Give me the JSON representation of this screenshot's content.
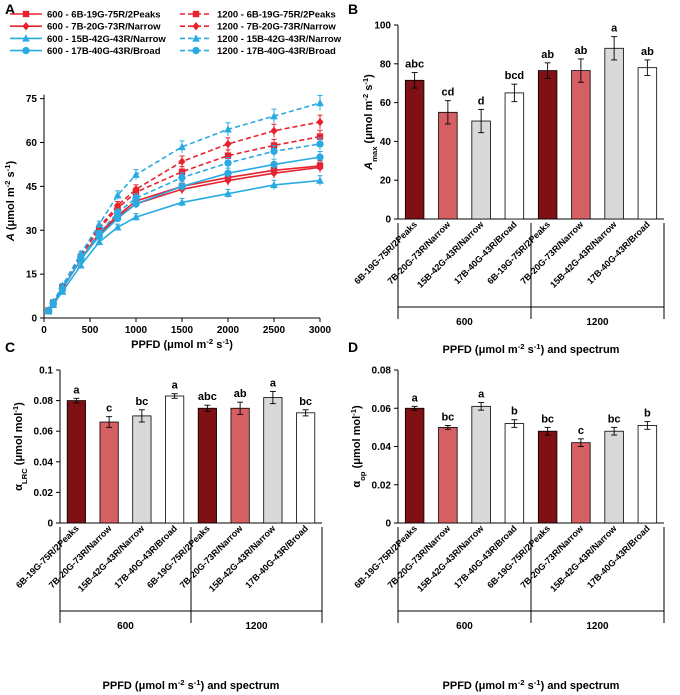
{
  "figure": {
    "panel_letters": [
      "A",
      "B",
      "C",
      "D"
    ],
    "colors": {
      "red": "#e8222e",
      "blue": "#29abe2",
      "dark_red": "#7f1014",
      "salmon": "#d65f63",
      "light_grey": "#d9d9d9",
      "white": "#ffffff",
      "axis": "#000000"
    }
  },
  "chart_data": [
    {
      "panel": "A",
      "type": "line",
      "title": "",
      "xlabel": "PPFD (μmol m⁻² s⁻¹)",
      "ylabel": "A (μmol m⁻² s⁻¹)",
      "xlim": [
        0,
        3000
      ],
      "ylim": [
        0,
        80
      ],
      "xticks": [
        0,
        500,
        1000,
        1500,
        2000,
        2500,
        3000
      ],
      "yticks": [
        0,
        15,
        30,
        45,
        60,
        75
      ],
      "grid": false,
      "legend_position": "top-left, two columns",
      "x": [
        50,
        100,
        200,
        400,
        600,
        800,
        1000,
        1500,
        2000,
        2500,
        3000
      ],
      "series": [
        {
          "name": "600 - 6B-19G-75R/2Peaks",
          "color": "#e8222e",
          "dashed": false,
          "marker": "square",
          "values": [
            2.5,
            5,
            10,
            20,
            29,
            35,
            40,
            45,
            48,
            50.5,
            52
          ]
        },
        {
          "name": "600 - 7B-20G-73R/Narrow",
          "color": "#e8222e",
          "dashed": false,
          "marker": "diamond",
          "values": [
            2.5,
            5,
            10,
            20,
            28.5,
            34.5,
            39,
            44,
            47,
            49.5,
            51.5
          ]
        },
        {
          "name": "600 - 15B-42G-43R/Narrow",
          "color": "#29abe2",
          "dashed": false,
          "marker": "triangle",
          "values": [
            2.3,
            4.5,
            9,
            18,
            26,
            31,
            34.5,
            39.5,
            42.5,
            45.5,
            47
          ]
        },
        {
          "name": "600 - 17B-40G-43R/Broad",
          "color": "#29abe2",
          "dashed": false,
          "marker": "circle",
          "values": [
            2.5,
            5,
            10,
            20,
            28,
            34,
            39,
            45,
            49.5,
            52.5,
            55
          ]
        },
        {
          "name": "1200 - 6B-19G-75R/2Peaks",
          "color": "#e8222e",
          "dashed": true,
          "marker": "square",
          "values": [
            2.6,
            5.2,
            10.5,
            21,
            30.5,
            37.5,
            43,
            50,
            55.5,
            59,
            62
          ]
        },
        {
          "name": "1200 - 7B-20G-73R/Narrow",
          "color": "#e8222e",
          "dashed": true,
          "marker": "diamond",
          "values": [
            2.6,
            5.2,
            10.5,
            21,
            31,
            38.5,
            44,
            53.5,
            59.5,
            64,
            67
          ]
        },
        {
          "name": "1200 - 15B-42G-43R/Narrow",
          "color": "#29abe2",
          "dashed": true,
          "marker": "triangle",
          "values": [
            2.7,
            5.5,
            11,
            22,
            32,
            42,
            49,
            58.5,
            64.5,
            69,
            73.5
          ]
        },
        {
          "name": "1200 - 17B-40G-43R/Broad",
          "color": "#29abe2",
          "dashed": true,
          "marker": "circle",
          "values": [
            2.5,
            5,
            10,
            20.5,
            29,
            36,
            41,
            48,
            53,
            57,
            59.5
          ]
        }
      ]
    },
    {
      "panel": "B",
      "type": "bar",
      "title": "",
      "xlabel": "PPFD (μmol m⁻² s⁻¹) and spectrum",
      "ylabel": "Amax (μmol m⁻² s⁻¹)",
      "ylim": [
        0,
        100
      ],
      "yticks": [
        0,
        20,
        40,
        60,
        80,
        100
      ],
      "grid": false,
      "categories": [
        "6B-19G-75R/2Peaks",
        "7B-20G-73R/Narrow",
        "15B-42G-43R/Narrow",
        "17B-40G-43R/Broad",
        "6B-19G-75R/2Peaks",
        "7B-20G-73R/Narrow",
        "15B-42G-43R/Narrow",
        "17B-40G-43R/Broad"
      ],
      "groups": [
        {
          "label": "600",
          "count": 4
        },
        {
          "label": "1200",
          "count": 4
        }
      ],
      "values": [
        71.5,
        55,
        50.5,
        65,
        76.5,
        76.5,
        88,
        78
      ],
      "errors": [
        4,
        6,
        6,
        4.5,
        4,
        6,
        6,
        4
      ],
      "letters": [
        "abc",
        "cd",
        "d",
        "bcd",
        "ab",
        "ab",
        "a",
        "ab"
      ],
      "fills": [
        "#7f1014",
        "#d65f63",
        "#d9d9d9",
        "#ffffff",
        "#7f1014",
        "#d65f63",
        "#d9d9d9",
        "#ffffff"
      ]
    },
    {
      "panel": "C",
      "type": "bar",
      "title": "",
      "xlabel": "PPFD (μmol m⁻² s⁻¹) and spectrum",
      "ylabel": "αLRC (μmol mol⁻¹)",
      "ylim": [
        0,
        0.1
      ],
      "yticks": [
        0,
        0.02,
        0.04,
        0.06,
        0.08,
        0.1
      ],
      "ytick_labels": [
        "0",
        "0.02",
        "0.04",
        "0.06",
        "0.08",
        "0.1"
      ],
      "grid": false,
      "categories": [
        "6B-19G-75R/2Peaks",
        "7B-20G-73R/Narrow",
        "15B-42G-43R/Narrow",
        "17B-40G-43R/Broad",
        "6B-19G-75R/2Peaks",
        "7B-20G-73R/Narrow",
        "15B-42G-43R/Narrow",
        "17B-40G-43R/Broad"
      ],
      "groups": [
        {
          "label": "600",
          "count": 4
        },
        {
          "label": "1200",
          "count": 4
        }
      ],
      "values": [
        0.08,
        0.066,
        0.07,
        0.083,
        0.075,
        0.075,
        0.082,
        0.072
      ],
      "errors": [
        0.0015,
        0.0035,
        0.004,
        0.0015,
        0.002,
        0.004,
        0.004,
        0.002
      ],
      "letters": [
        "a",
        "c",
        "bc",
        "a",
        "abc",
        "ab",
        "a",
        "bc"
      ],
      "fills": [
        "#7f1014",
        "#d65f63",
        "#d9d9d9",
        "#ffffff",
        "#7f1014",
        "#d65f63",
        "#d9d9d9",
        "#ffffff"
      ]
    },
    {
      "panel": "D",
      "type": "bar",
      "title": "",
      "xlabel": "PPFD (μmol m⁻² s⁻¹) and spectrum",
      "ylabel": "αop (μmol mol⁻¹)",
      "ylim": [
        0,
        0.08
      ],
      "yticks": [
        0,
        0.02,
        0.04,
        0.06,
        0.08
      ],
      "ytick_labels": [
        "0",
        "0.02",
        "0.04",
        "0.06",
        "0.08"
      ],
      "grid": false,
      "categories": [
        "6B-19G-75R/2Peaks",
        "7B-20G-73R/Narrow",
        "15B-42G-43R/Narrow",
        "17B-40G-43R/Broad",
        "6B-19G-75R/2Peaks",
        "7B-20G-73R/Narrow",
        "15B-42G-43R/Narrow",
        "17B-40G-43R/Broad"
      ],
      "groups": [
        {
          "label": "600",
          "count": 4
        },
        {
          "label": "1200",
          "count": 4
        }
      ],
      "values": [
        0.06,
        0.05,
        0.061,
        0.052,
        0.048,
        0.042,
        0.048,
        0.051
      ],
      "errors": [
        0.001,
        0.001,
        0.002,
        0.002,
        0.002,
        0.002,
        0.002,
        0.002
      ],
      "letters": [
        "a",
        "bc",
        "a",
        "b",
        "bc",
        "c",
        "bc",
        "b"
      ],
      "fills": [
        "#7f1014",
        "#d65f63",
        "#d9d9d9",
        "#ffffff",
        "#7f1014",
        "#d65f63",
        "#d9d9d9",
        "#ffffff"
      ]
    }
  ]
}
